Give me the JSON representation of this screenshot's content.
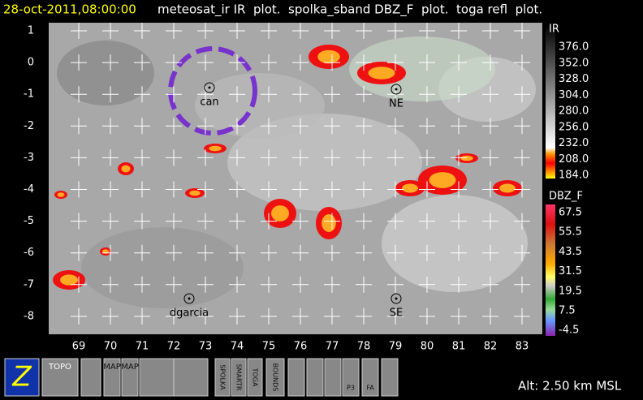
{
  "header": {
    "time": "28-oct-2011,08:00:00",
    "layers": "meteosat_ir IR  plot.  spolka_sband DBZ_F  plot.  toga refl  plot."
  },
  "map": {
    "lat_labels": [
      "1",
      "0",
      "-1",
      "-2",
      "-3",
      "-4",
      "-5",
      "-6",
      "-7",
      "-8"
    ],
    "lon_labels": [
      "69",
      "70",
      "71",
      "72",
      "73",
      "74",
      "75",
      "76",
      "77",
      "78",
      "79",
      "80",
      "81",
      "82",
      "83"
    ],
    "stations": [
      "can",
      "NE",
      "dgarcia",
      "SE"
    ]
  },
  "colorbars": [
    {
      "title": "IR",
      "labels": [
        "376.0",
        "352.0",
        "328.0",
        "304.0",
        "280.0",
        "256.0",
        "232.0",
        "208.0",
        "184.0"
      ]
    },
    {
      "title": "DBZ_F",
      "labels": [
        "67.5",
        "55.5",
        "43.5",
        "31.5",
        "19.5",
        "7.5",
        "-4.5"
      ]
    }
  ],
  "toolbar": {
    "buttons": [
      "TOPO",
      "MAP",
      "MAP",
      "SPOLKA",
      "SMARTR",
      "TOGA",
      "BOUNDS",
      "P3",
      "FA"
    ]
  },
  "status": "Alt: 2.50 km MSL"
}
